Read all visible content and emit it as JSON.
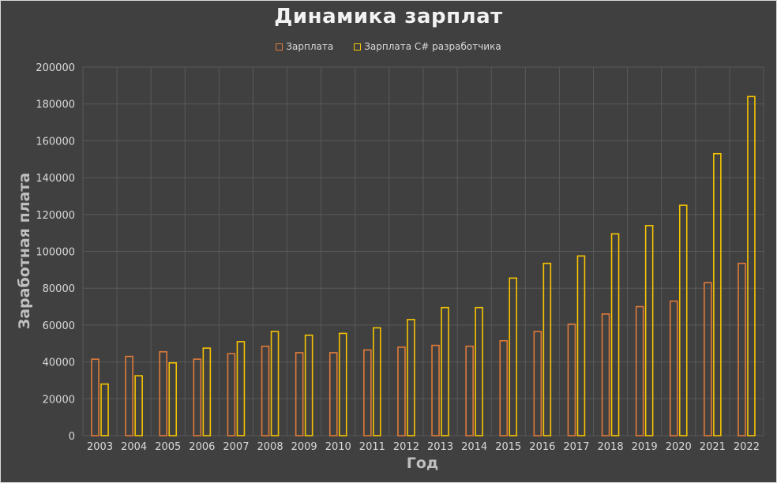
{
  "chart_data": {
    "type": "bar",
    "title": "Динамика зарплат",
    "xlabel": "Год",
    "ylabel": "Заработная плата",
    "ylim": [
      0,
      200000
    ],
    "y_ticks": [
      0,
      20000,
      40000,
      60000,
      80000,
      100000,
      120000,
      140000,
      160000,
      180000,
      200000
    ],
    "grid": true,
    "legend_position": "top",
    "categories": [
      "2003",
      "2004",
      "2005",
      "2006",
      "2007",
      "2008",
      "2009",
      "2010",
      "2011",
      "2012",
      "2013",
      "2014",
      "2015",
      "2016",
      "2017",
      "2018",
      "2019",
      "2020",
      "2021",
      "2022"
    ],
    "series": [
      {
        "name": "Зарплата",
        "color": "#e07b39",
        "values": [
          41500,
          43000,
          45500,
          41500,
          44500,
          48500,
          45000,
          45000,
          46500,
          48000,
          49000,
          48500,
          51500,
          56500,
          60500,
          66000,
          70000,
          73000,
          83000,
          93500
        ]
      },
      {
        "name": "Зарплата C# разработчика",
        "color": "#f5c400",
        "values": [
          28000,
          32500,
          39500,
          47500,
          51000,
          56500,
          54500,
          55500,
          58500,
          63000,
          69500,
          69500,
          85500,
          93500,
          97500,
          109500,
          114000,
          125000,
          153000,
          184000
        ]
      }
    ]
  }
}
